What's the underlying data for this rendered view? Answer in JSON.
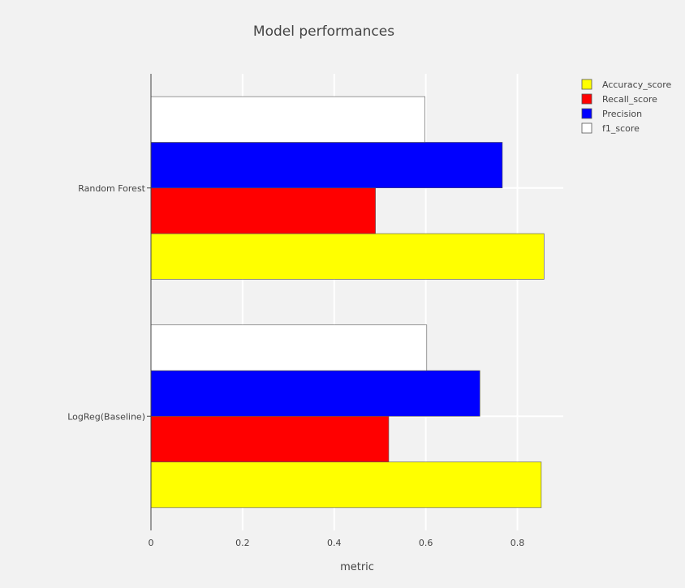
{
  "chart_data": {
    "type": "bar",
    "orientation": "horizontal",
    "title": "Model performances",
    "xlabel": "metric",
    "ylabel": "",
    "xlim": [
      0,
      0.9
    ],
    "x_ticks": [
      0,
      0.2,
      0.4,
      0.6,
      0.8
    ],
    "x_tick_labels": [
      "0",
      "0.2",
      "0.4",
      "0.6",
      "0.8"
    ],
    "categories": [
      "LogReg(Baseline)",
      "Random Forest"
    ],
    "grid": true,
    "legend_position": "top-right",
    "series": [
      {
        "name": "Accuracy_score",
        "color": "#ffff00",
        "values": [
          0.852,
          0.858
        ]
      },
      {
        "name": "Recall_score",
        "color": "#ff0000",
        "values": [
          0.519,
          0.49
        ]
      },
      {
        "name": "Precision",
        "color": "#0000ff",
        "values": [
          0.718,
          0.767
        ]
      },
      {
        "name": "f1_score",
        "color": "#ffffff",
        "values": [
          0.602,
          0.598
        ]
      }
    ]
  }
}
